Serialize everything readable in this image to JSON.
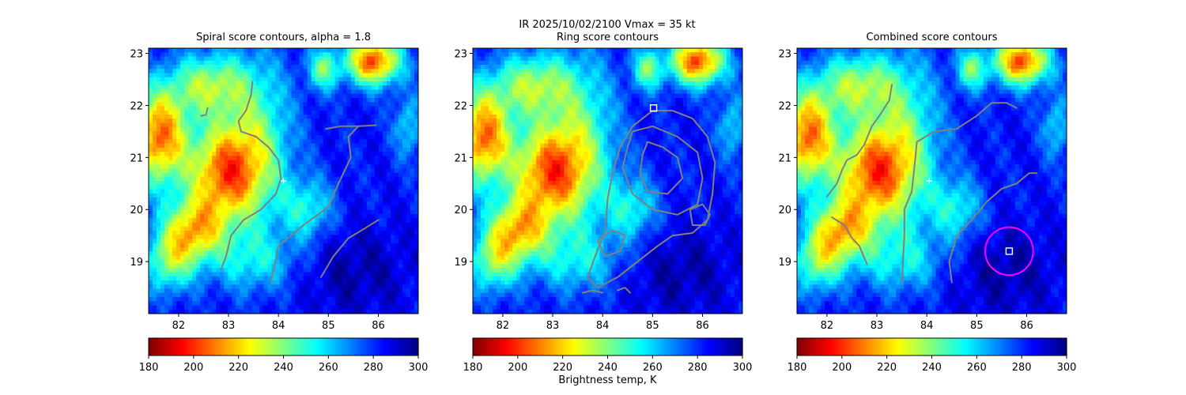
{
  "suptitle_line1": "IR  2025/10/02/2100    Vmax = 35 kt",
  "colorbar_label": "Brightness temp, K",
  "colormap": "jet_r",
  "chart_data": [
    {
      "type": "heatmap",
      "title": "Spiral score contours, alpha =  1.8",
      "xlim": [
        81.4,
        86.8
      ],
      "ylim": [
        18.0,
        23.1
      ],
      "xticks": [
        82,
        83,
        84,
        85,
        86
      ],
      "yticks": [
        19,
        20,
        21,
        22
      ],
      "overlay": {
        "contour_color": "#808080",
        "contours": [
          [
            [
              82.45,
              21.8
            ],
            [
              82.55,
              21.82
            ],
            [
              82.58,
              21.95
            ]
          ],
          [
            [
              83.48,
              22.45
            ],
            [
              83.45,
              22.2
            ],
            [
              83.35,
              21.9
            ],
            [
              83.2,
              21.7
            ],
            [
              83.25,
              21.5
            ],
            [
              83.55,
              21.4
            ],
            [
              83.8,
              21.2
            ],
            [
              84.0,
              20.95
            ],
            [
              84.05,
              20.6
            ],
            [
              83.95,
              20.3
            ],
            [
              83.65,
              20.0
            ],
            [
              83.3,
              19.8
            ],
            [
              83.05,
              19.5
            ],
            [
              82.95,
              19.1
            ],
            [
              82.85,
              18.85
            ]
          ],
          [
            [
              84.95,
              21.55
            ],
            [
              85.25,
              21.6
            ],
            [
              85.6,
              21.6
            ],
            [
              85.95,
              21.62
            ]
          ],
          [
            [
              85.6,
              21.6
            ],
            [
              85.4,
              21.4
            ],
            [
              85.45,
              21.0
            ],
            [
              85.2,
              20.5
            ],
            [
              85.0,
              20.05
            ],
            [
              84.5,
              19.7
            ],
            [
              84.0,
              19.3
            ],
            [
              83.85,
              18.6
            ]
          ],
          [
            [
              84.85,
              18.7
            ],
            [
              85.1,
              19.1
            ],
            [
              85.4,
              19.45
            ],
            [
              85.75,
              19.65
            ],
            [
              86.0,
              19.8
            ]
          ]
        ],
        "markers": [
          {
            "symbol": "+",
            "x": 84.1,
            "y": 20.55,
            "color": "#ffffff"
          }
        ]
      },
      "colorbar": {
        "min": 180,
        "max": 300,
        "ticks": [
          180,
          200,
          220,
          240,
          260,
          280,
          300
        ],
        "label": ""
      }
    },
    {
      "type": "heatmap",
      "title": "Ring score contours",
      "xlim": [
        81.4,
        86.8
      ],
      "ylim": [
        18.0,
        23.1
      ],
      "xticks": [
        82,
        83,
        84,
        85,
        86
      ],
      "yticks": [
        19,
        20,
        21,
        22
      ],
      "overlay": {
        "contour_color": "#808080",
        "contours": [
          [
            [
              85.0,
              21.9
            ],
            [
              85.4,
              21.9
            ],
            [
              85.8,
              21.75
            ],
            [
              86.1,
              21.4
            ],
            [
              86.25,
              20.9
            ],
            [
              86.2,
              20.3
            ],
            [
              86.1,
              19.8
            ],
            [
              85.8,
              19.55
            ],
            [
              85.4,
              19.5
            ],
            [
              85.1,
              19.3
            ],
            [
              84.7,
              19.0
            ],
            [
              84.3,
              18.7
            ],
            [
              83.9,
              18.5
            ],
            [
              83.7,
              18.7
            ],
            [
              83.85,
              19.1
            ],
            [
              84.05,
              19.6
            ],
            [
              84.1,
              20.2
            ],
            [
              84.2,
              20.7
            ],
            [
              84.35,
              21.2
            ],
            [
              84.6,
              21.6
            ],
            [
              85.0,
              21.9
            ]
          ],
          [
            [
              84.6,
              21.5
            ],
            [
              85.0,
              21.6
            ],
            [
              85.5,
              21.4
            ],
            [
              85.9,
              21.1
            ],
            [
              86.0,
              20.6
            ],
            [
              85.9,
              20.1
            ],
            [
              85.5,
              19.9
            ],
            [
              85.0,
              20.0
            ],
            [
              84.6,
              20.3
            ],
            [
              84.4,
              20.8
            ],
            [
              84.5,
              21.2
            ],
            [
              84.6,
              21.5
            ]
          ],
          [
            [
              84.9,
              21.3
            ],
            [
              85.2,
              21.2
            ],
            [
              85.5,
              21.0
            ],
            [
              85.6,
              20.6
            ],
            [
              85.3,
              20.3
            ],
            [
              84.9,
              20.35
            ],
            [
              84.75,
              20.7
            ],
            [
              84.8,
              21.05
            ],
            [
              84.9,
              21.3
            ]
          ],
          [
            [
              83.9,
              19.4
            ],
            [
              84.2,
              19.6
            ],
            [
              84.45,
              19.5
            ],
            [
              84.35,
              19.2
            ],
            [
              84.05,
              19.1
            ],
            [
              83.9,
              19.4
            ]
          ],
          [
            [
              85.75,
              20.0
            ],
            [
              86.0,
              20.1
            ],
            [
              86.15,
              19.9
            ],
            [
              86.05,
              19.7
            ],
            [
              85.8,
              19.7
            ],
            [
              85.75,
              20.0
            ]
          ],
          [
            [
              83.6,
              18.4
            ],
            [
              83.8,
              18.45
            ],
            [
              84.0,
              18.4
            ]
          ],
          [
            [
              84.3,
              18.45
            ],
            [
              84.45,
              18.5
            ],
            [
              84.55,
              18.4
            ]
          ]
        ],
        "markers": [
          {
            "symbol": "square",
            "x": 85.02,
            "y": 21.95,
            "color": "#ffffff"
          }
        ]
      },
      "colorbar": {
        "min": 180,
        "max": 300,
        "ticks": [
          180,
          200,
          220,
          240,
          260,
          280,
          300
        ],
        "label": "Brightness temp, K"
      }
    },
    {
      "type": "heatmap",
      "title": "Combined score contours",
      "xlim": [
        81.4,
        86.8
      ],
      "ylim": [
        18.0,
        23.1
      ],
      "xticks": [
        82,
        83,
        84,
        85,
        86
      ],
      "yticks": [
        19,
        20,
        21,
        22
      ],
      "overlay": {
        "contour_color": "#808080",
        "contours": [
          [
            [
              83.3,
              22.4
            ],
            [
              83.25,
              22.1
            ],
            [
              83.05,
              21.8
            ],
            [
              82.9,
              21.6
            ],
            [
              82.75,
              21.25
            ],
            [
              82.6,
              21.05
            ],
            [
              82.4,
              20.95
            ],
            [
              82.3,
              20.75
            ],
            [
              82.2,
              20.5
            ],
            [
              82.0,
              20.25
            ]
          ],
          [
            [
              82.1,
              19.85
            ],
            [
              82.35,
              19.7
            ],
            [
              82.5,
              19.45
            ],
            [
              82.65,
              19.3
            ],
            [
              82.8,
              18.95
            ]
          ],
          [
            [
              85.8,
              21.95
            ],
            [
              85.6,
              22.05
            ],
            [
              85.3,
              22.05
            ],
            [
              85.0,
              21.8
            ],
            [
              84.6,
              21.55
            ],
            [
              84.15,
              21.5
            ],
            [
              83.8,
              21.3
            ],
            [
              83.75,
              20.8
            ],
            [
              83.7,
              20.35
            ],
            [
              83.55,
              20.0
            ],
            [
              83.55,
              19.5
            ],
            [
              83.5,
              18.6
            ]
          ],
          [
            [
              86.2,
              20.7
            ],
            [
              86.05,
              20.7
            ],
            [
              85.8,
              20.5
            ],
            [
              85.5,
              20.4
            ],
            [
              85.2,
              20.15
            ],
            [
              84.9,
              19.8
            ],
            [
              84.6,
              19.5
            ],
            [
              84.45,
              19.0
            ],
            [
              84.5,
              18.6
            ]
          ]
        ],
        "markers": [
          {
            "symbol": "+",
            "x": 84.05,
            "y": 20.55,
            "color": "#ffffff"
          },
          {
            "symbol": "square",
            "x": 85.65,
            "y": 19.2,
            "color": "#ffffff"
          },
          {
            "symbol": "circle",
            "x": 85.65,
            "y": 19.2,
            "radius_deg": 0.48,
            "color": "#ff00ff"
          }
        ]
      },
      "colorbar": {
        "min": 180,
        "max": 300,
        "ticks": [
          180,
          200,
          220,
          240,
          260,
          280,
          300
        ],
        "label": ""
      }
    }
  ]
}
